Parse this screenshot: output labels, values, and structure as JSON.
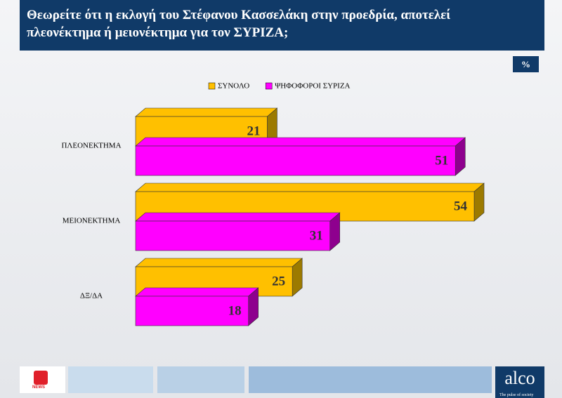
{
  "chart_data": {
    "type": "bar3d_horizontal",
    "title": "Θεωρείτε ότι η εκλογή του Στέφανου Κασσελάκη στην προεδρία, αποτελεί πλεονέκτημα ή μειονέκτημα για τον ΣΥΡΙΖΑ;",
    "unit": "%",
    "categories": [
      "ΠΛΕΟΝΕΚΤΗΜΑ",
      "ΜΕΙΟΝΕΚΤΗΜΑ",
      "ΔΞ/ΔΑ"
    ],
    "series": [
      {
        "name": "ΣΥΝΟΛΟ",
        "color": "#FFC000",
        "side_color": "#9C7A00",
        "values": [
          21,
          54,
          25
        ]
      },
      {
        "name": "ΨΗΦΟΦΟΡΟΙ ΣΥΡΙΖΑ",
        "color": "#FF00FF",
        "side_color": "#8E008E",
        "values": [
          51,
          31,
          18
        ]
      }
    ]
  },
  "footer": {
    "brand": "alco",
    "tagline": "The pulse of society",
    "channel_badge": "NEWS"
  }
}
